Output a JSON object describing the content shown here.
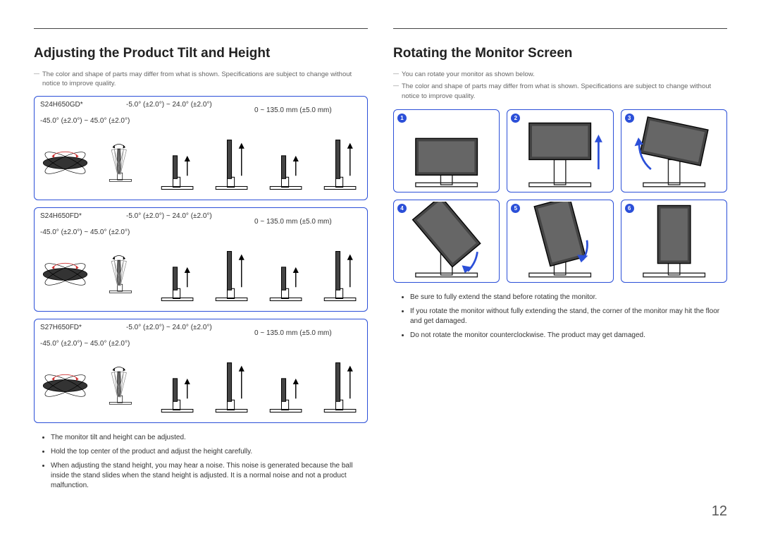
{
  "page_number": "12",
  "accent_color": "#2b4fd8",
  "left": {
    "title": "Adjusting the Product Tilt and Height",
    "note1": "The color and shape of parts may differ from what is shown. Specifications are subject to change without notice to improve quality.",
    "models": [
      {
        "model": "S24H650GD*",
        "tilt": "-5.0° (±2.0°) ~ 24.0° (±2.0°)",
        "swivel": "-45.0° (±2.0°) ~ 45.0° (±2.0°)",
        "height": "0 ~ 135.0 mm (±5.0 mm)"
      },
      {
        "model": "S24H650FD*",
        "tilt": "-5.0° (±2.0°) ~ 24.0° (±2.0°)",
        "swivel": "-45.0° (±2.0°) ~ 45.0° (±2.0°)",
        "height": "0 ~ 135.0 mm (±5.0 mm)"
      },
      {
        "model": "S27H650FD*",
        "tilt": "-5.0° (±2.0°) ~ 24.0° (±2.0°)",
        "swivel": "-45.0° (±2.0°) ~ 45.0° (±2.0°)",
        "height": "0 ~ 135.0 mm (±5.0 mm)"
      }
    ],
    "bullets": [
      "The monitor tilt and height can be adjusted.",
      "Hold the top center of the product and adjust the height carefully.",
      "When adjusting the stand height, you may hear a noise. This noise is generated because the ball inside the stand slides when the stand height is adjusted. It is a normal noise and not a product malfunction."
    ]
  },
  "right": {
    "title": "Rotating the Monitor Screen",
    "note1": "You can rotate your monitor as shown below.",
    "note2": "The color and shape of parts may differ from what is shown. Specifications are subject to change without notice to improve quality.",
    "steps": [
      "1",
      "2",
      "3",
      "4",
      "5",
      "6"
    ],
    "bullets": [
      "Be sure to fully extend the stand before rotating the monitor.",
      "If you rotate the monitor without fully extending the stand, the corner of the monitor may hit the floor and get damaged.",
      "Do not rotate the monitor counterclockwise. The product may get damaged."
    ]
  }
}
